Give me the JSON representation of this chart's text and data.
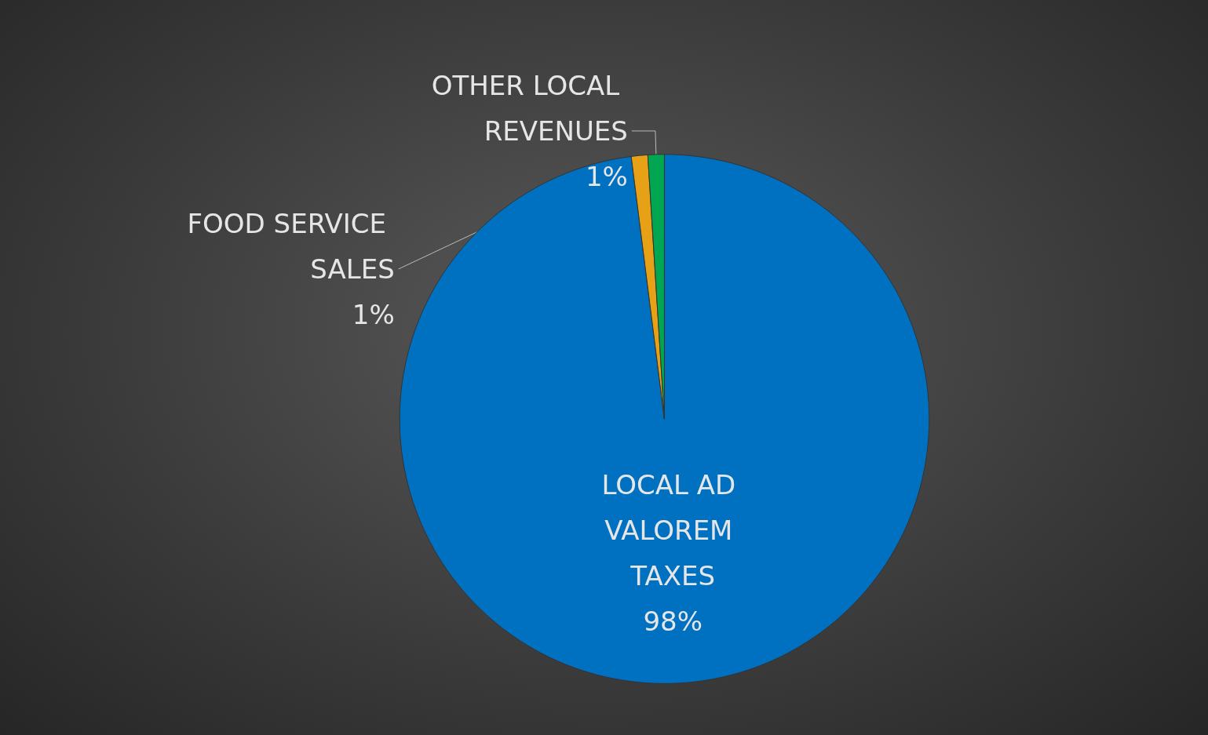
{
  "chart_data": {
    "type": "pie",
    "categories": [
      "LOCAL AD VALOREM TAXES",
      "FOOD SERVICE SALES",
      "OTHER LOCAL REVENUES"
    ],
    "values": [
      98,
      1,
      1
    ],
    "value_labels": [
      "98%",
      "1%",
      "1%"
    ],
    "colors": [
      "#0070c0",
      "#e6a117",
      "#00a651"
    ],
    "legend": false
  }
}
